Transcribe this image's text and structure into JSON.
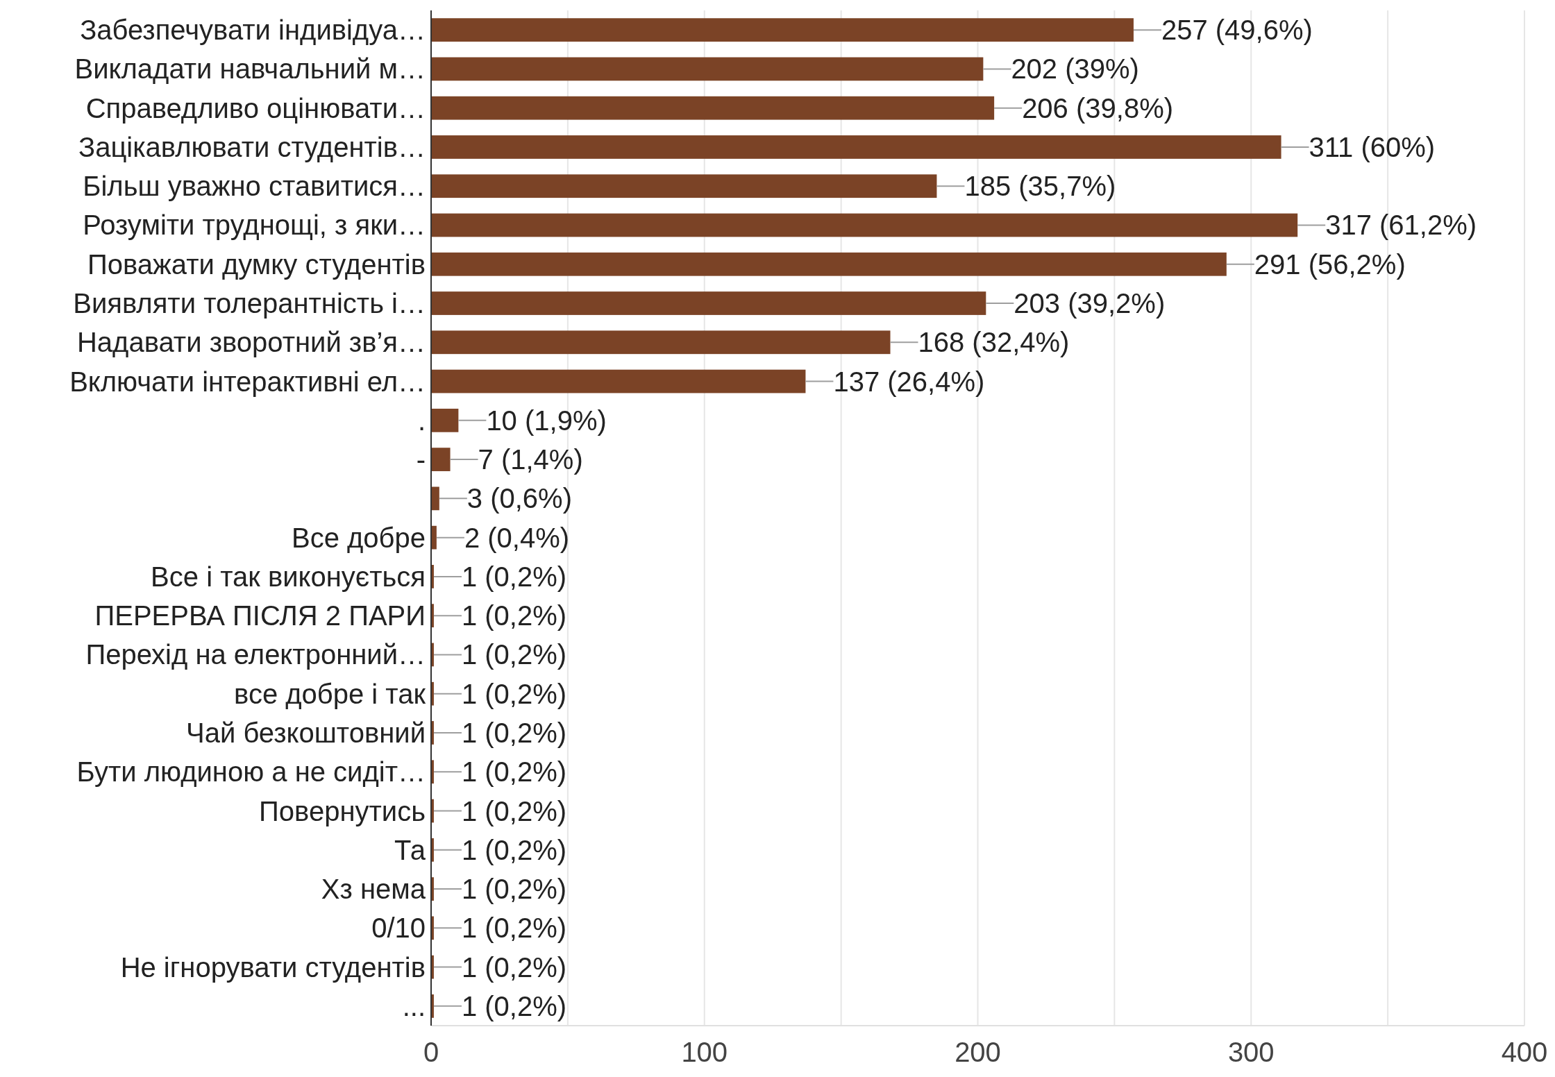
{
  "chart_data": {
    "type": "bar",
    "orientation": "horizontal",
    "categories": [
      "Забезпечувати індивідуа…",
      "Викладати навчальний м…",
      "Справедливо оцінювати…",
      "Зацікавлювати студентів…",
      "Більш уважно ставитися…",
      "Розуміти труднощі, з яки…",
      "Поважати думку студентів",
      "Виявляти толерантність і…",
      "Надавати зворотний зв’я…",
      "Включати інтерактивні ел…",
      ".",
      "-",
      null,
      "Все добре",
      "Все і так виконується",
      "ПЕРЕРВА ПІСЛЯ 2 ПАРИ",
      "Перехід на електронний…",
      "все добре і так",
      "Чай безкоштовний",
      "Бути людиною а не сидіт…",
      "Повернутись",
      "Та",
      "Хз нема",
      "0/10",
      "Не ігнорувати студентів",
      "..."
    ],
    "values": [
      257,
      202,
      206,
      311,
      185,
      317,
      291,
      203,
      168,
      137,
      10,
      7,
      3,
      2,
      1,
      1,
      1,
      1,
      1,
      1,
      1,
      1,
      1,
      1,
      1,
      1
    ],
    "value_labels": [
      "257 (49,6%)",
      "202 (39%)",
      "206 (39,8%)",
      "311 (60%)",
      "185 (35,7%)",
      "317 (61,2%)",
      "291 (56,2%)",
      "203 (39,2%)",
      "168 (32,4%)",
      "137 (26,4%)",
      "10 (1,9%)",
      "7 (1,4%)",
      "3 (0,6%)",
      "2 (0,4%)",
      "1 (0,2%)",
      "1 (0,2%)",
      "1 (0,2%)",
      "1 (0,2%)",
      "1 (0,2%)",
      "1 (0,2%)",
      "1 (0,2%)",
      "1 (0,2%)",
      "1 (0,2%)",
      "1 (0,2%)",
      "1 (0,2%)",
      "1 (0,2%)"
    ],
    "color": "#7b4326",
    "xlim": [
      0,
      400
    ],
    "xticks": [
      0,
      {
        "value": 50,
        "label": null
      },
      100,
      {
        "value": 150,
        "label": null
      },
      200,
      {
        "value": 250,
        "label": null
      },
      300,
      {
        "value": 350,
        "label": null
      },
      400
    ],
    "grid": "x"
  }
}
